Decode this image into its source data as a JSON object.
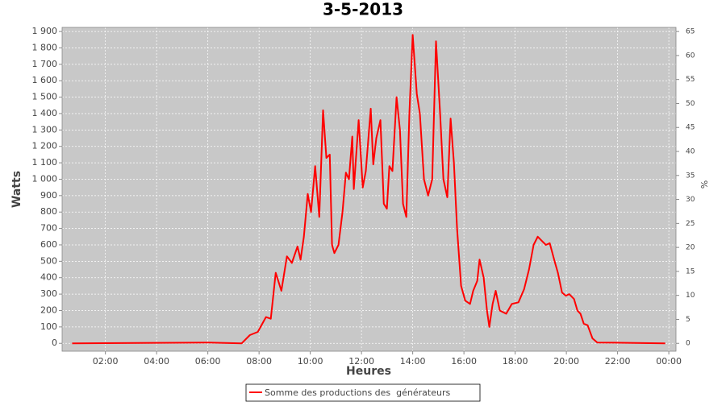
{
  "chart_data": {
    "type": "line",
    "title": "3-5-2013",
    "xlabel": "Heures",
    "ylabel": "Watts",
    "y2label": "%",
    "x": [
      0.7,
      6.06,
      7.32,
      7.64,
      7.95,
      8.27,
      8.46,
      8.65,
      8.87,
      9.09,
      9.28,
      9.5,
      9.62,
      9.75,
      9.9,
      10.03,
      10.19,
      10.35,
      10.5,
      10.63,
      10.76,
      10.85,
      10.94,
      11.1,
      11.26,
      11.39,
      11.51,
      11.64,
      11.7,
      11.89,
      12.05,
      12.17,
      12.36,
      12.46,
      12.58,
      12.74,
      12.87,
      12.99,
      13.09,
      13.21,
      13.37,
      13.5,
      13.62,
      13.75,
      13.87,
      14.0,
      14.16,
      14.28,
      14.44,
      14.6,
      14.76,
      14.91,
      15.07,
      15.2,
      15.35,
      15.48,
      15.61,
      15.73,
      15.89,
      16.05,
      16.24,
      16.36,
      16.52,
      16.61,
      16.77,
      16.9,
      16.99,
      17.12,
      17.24,
      17.4,
      17.65,
      17.87,
      18.13,
      18.35,
      18.54,
      18.72,
      18.88,
      19.07,
      19.2,
      19.35,
      19.54,
      19.67,
      19.83,
      19.98,
      20.11,
      20.3,
      20.43,
      20.55,
      20.68,
      20.83,
      21.02,
      21.21,
      22.44,
      23.86
    ],
    "series": [
      {
        "name": "Somme des productions des  générateurs",
        "color": "#ff0000",
        "values": [
          0,
          5,
          0,
          50,
          70,
          160,
          150,
          430,
          320,
          530,
          490,
          590,
          510,
          650,
          910,
          800,
          1080,
          770,
          1420,
          1130,
          1150,
          600,
          550,
          600,
          800,
          1040,
          1000,
          1260,
          940,
          1360,
          950,
          1050,
          1430,
          1090,
          1250,
          1360,
          850,
          820,
          1080,
          1050,
          1500,
          1300,
          850,
          770,
          1400,
          1880,
          1520,
          1400,
          1000,
          900,
          1000,
          1840,
          1400,
          1000,
          890,
          1370,
          1100,
          700,
          350,
          260,
          240,
          320,
          380,
          510,
          400,
          200,
          100,
          240,
          320,
          200,
          180,
          240,
          250,
          330,
          450,
          600,
          650,
          620,
          600,
          610,
          500,
          430,
          310,
          290,
          300,
          270,
          200,
          180,
          120,
          110,
          30,
          5,
          3,
          0
        ]
      }
    ],
    "xlim": [
      0.31,
      24.28
    ],
    "xticks": [
      {
        "value": 2,
        "label": "02:00"
      },
      {
        "value": 4,
        "label": "04:00"
      },
      {
        "value": 6,
        "label": "06:00"
      },
      {
        "value": 8,
        "label": "08:00"
      },
      {
        "value": 10,
        "label": "10:00"
      },
      {
        "value": 12,
        "label": "12:00"
      },
      {
        "value": 14,
        "label": "14:00"
      },
      {
        "value": 16,
        "label": "16:00"
      },
      {
        "value": 18,
        "label": "18:00"
      },
      {
        "value": 20,
        "label": "20:00"
      },
      {
        "value": 22,
        "label": "22:00"
      },
      {
        "value": 24,
        "label": "00:00"
      }
    ],
    "ylim": [
      -48,
      1925
    ],
    "yticks": [
      0,
      100,
      200,
      300,
      400,
      500,
      600,
      700,
      800,
      900,
      {
        "value": 1000,
        "label": "1 000"
      },
      {
        "value": 1100,
        "label": "1 100"
      },
      {
        "value": 1200,
        "label": "1 200"
      },
      {
        "value": 1300,
        "label": "1 300"
      },
      {
        "value": 1400,
        "label": "1 400"
      },
      {
        "value": 1500,
        "label": "1 500"
      },
      {
        "value": 1600,
        "label": "1 600"
      },
      {
        "value": 1700,
        "label": "1 700"
      },
      {
        "value": 1800,
        "label": "1 800"
      },
      {
        "value": 1900,
        "label": "1 900"
      }
    ],
    "y2lim": [
      -1.64,
      65.86
    ],
    "y2ticks": [
      0,
      5,
      10,
      15,
      20,
      25,
      30,
      35,
      40,
      45,
      50,
      55,
      60,
      65
    ],
    "grid": true
  }
}
